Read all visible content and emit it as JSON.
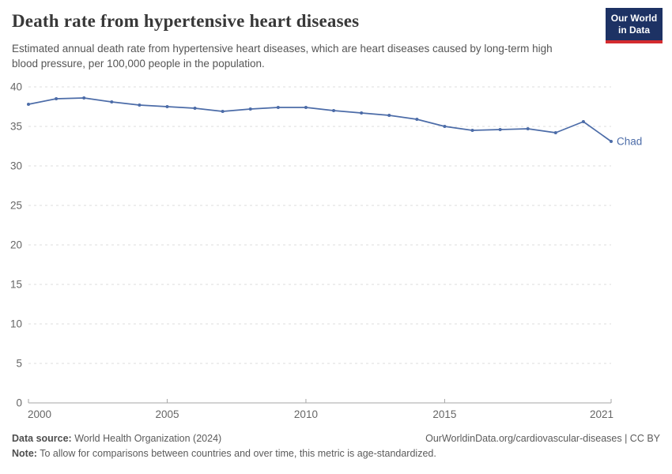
{
  "header": {
    "title": "Death rate from hypertensive heart diseases",
    "subtitle": "Estimated annual death rate from hypertensive heart diseases, which are heart diseases caused by long-term high blood pressure, per 100,000 people in the population.",
    "logo_line1": "Our World",
    "logo_line2": "in Data"
  },
  "chart_data": {
    "type": "line",
    "title": "Death rate from hypertensive heart diseases",
    "x": [
      2000,
      2001,
      2002,
      2003,
      2004,
      2005,
      2006,
      2007,
      2008,
      2009,
      2010,
      2011,
      2012,
      2013,
      2014,
      2015,
      2016,
      2017,
      2018,
      2019,
      2020,
      2021
    ],
    "series": [
      {
        "name": "Chad",
        "values": [
          37.8,
          38.5,
          38.6,
          38.1,
          37.7,
          37.5,
          37.3,
          36.9,
          37.2,
          37.4,
          37.4,
          37.0,
          36.7,
          36.4,
          35.9,
          35.0,
          34.5,
          34.6,
          34.7,
          34.2,
          35.6,
          33.1
        ],
        "color": "#4C6CA8"
      }
    ],
    "ylim": [
      0,
      40
    ],
    "yticks": [
      0,
      5,
      10,
      15,
      20,
      25,
      30,
      35,
      40
    ],
    "xticks": [
      2000,
      2005,
      2010,
      2015,
      2021
    ],
    "grid": "horizontal-dashed",
    "legend": "end-of-line-label",
    "end_label": "Chad"
  },
  "footer": {
    "source_label": "Data source:",
    "source_value": " World Health Organization (2024)",
    "attribution": "OurWorldinData.org/cardiovascular-diseases | CC BY",
    "note_label": "Note:",
    "note_value": " To allow for comparisons between countries and over time, this metric is age-standardized."
  },
  "colors": {
    "line": "#4C6CA8",
    "logo_navy": "#1D3264",
    "logo_red": "#D42B2F",
    "grid": "#DCDCDC",
    "axis": "#A6A6A6",
    "text_gray": "#5B5B5B"
  }
}
